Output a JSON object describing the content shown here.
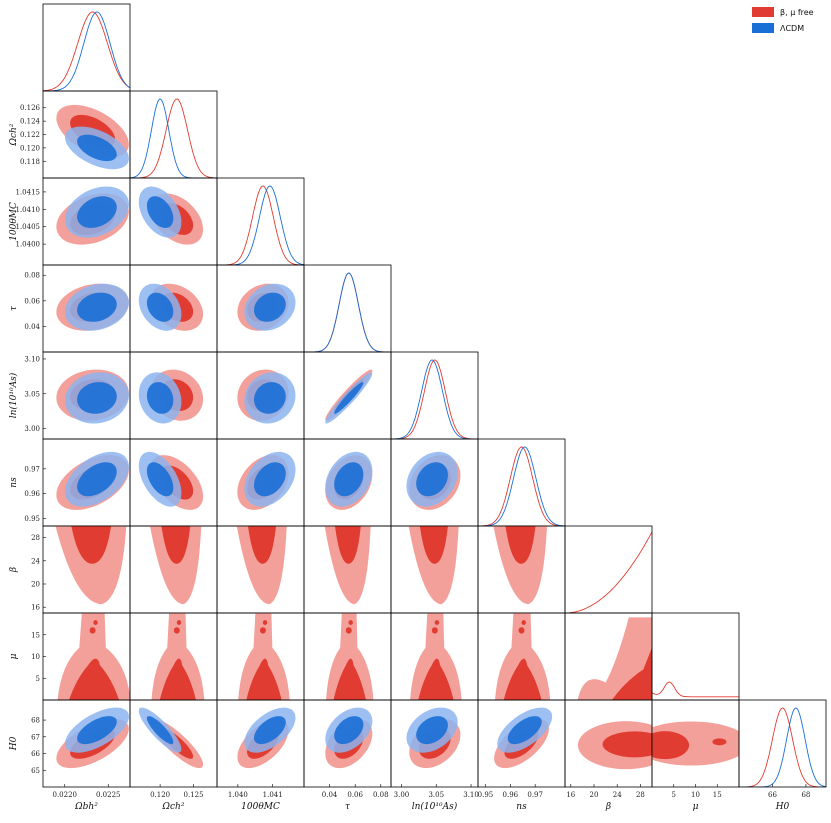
{
  "colors": {
    "red": "#E03C31",
    "red_light": "#F4A09A",
    "blue": "#1A6FD6",
    "blue_light": "#8CB4EE"
  },
  "legend": {
    "entries": [
      {
        "label": "β, μ free",
        "color": "#E03C31"
      },
      {
        "label": "ΛCDM",
        "color": "#1A6FD6"
      }
    ]
  },
  "chart_data": {
    "type": "triangle-corner",
    "series": [
      {
        "name": "β, μ free",
        "color": "#E03C31"
      },
      {
        "name": "ΛCDM",
        "color": "#1A6FD6"
      }
    ],
    "parameters": [
      {
        "key": "omegabh2",
        "label": "Ωbh²",
        "range": [
          0.02175,
          0.02275
        ],
        "ticks": [
          0.022,
          0.0225
        ],
        "tick_labels": [
          "0.0220",
          "0.0225"
        ],
        "red": {
          "mean": 0.02232,
          "sigma": 0.00017
        },
        "blue": {
          "mean": 0.02237,
          "sigma": 0.00015
        }
      },
      {
        "key": "omegach2",
        "label": "Ωch²",
        "range": [
          0.1155,
          0.1285
        ],
        "ticks": [
          0.118,
          0.12,
          0.122,
          0.124,
          0.126
        ],
        "tick_labels": [
          "0.118",
          "0.120",
          "0.122",
          "0.124",
          "0.126"
        ],
        "xticks": [
          0.12,
          0.125
        ],
        "xtick_labels": [
          "0.120",
          "0.125"
        ],
        "red": {
          "mean": 0.1225,
          "sigma": 0.0016
        },
        "blue": {
          "mean": 0.12,
          "sigma": 0.0013
        }
      },
      {
        "key": "theta",
        "label": "100θMC",
        "range": [
          1.0394,
          1.0419
        ],
        "ticks": [
          1.04,
          1.0405,
          1.041,
          1.0415
        ],
        "tick_labels": [
          "1.0400",
          "1.0405",
          "1.0410",
          "1.0415"
        ],
        "xticks": [
          1.04,
          1.041
        ],
        "xtick_labels": [
          "1.040",
          "1.041"
        ],
        "red": {
          "mean": 1.04072,
          "sigma": 0.0003
        },
        "blue": {
          "mean": 1.04092,
          "sigma": 0.0003
        }
      },
      {
        "key": "tau",
        "label": "τ",
        "range": [
          0.02,
          0.088
        ],
        "ticks": [
          0.04,
          0.06,
          0.08
        ],
        "tick_labels": [
          "0.04",
          "0.06",
          "0.08"
        ],
        "red": {
          "mean": 0.055,
          "sigma": 0.0075
        },
        "blue": {
          "mean": 0.055,
          "sigma": 0.0075
        }
      },
      {
        "key": "lnAs",
        "label": "ln(10¹⁰As)",
        "range": [
          2.985,
          3.11
        ],
        "ticks": [
          3.0,
          3.05,
          3.1
        ],
        "tick_labels": [
          "3.00",
          "3.05",
          "3.10"
        ],
        "red": {
          "mean": 3.048,
          "sigma": 0.015
        },
        "blue": {
          "mean": 3.044,
          "sigma": 0.015
        }
      },
      {
        "key": "ns",
        "label": "ns",
        "range": [
          0.947,
          0.982
        ],
        "ticks": [
          0.95,
          0.96,
          0.97
        ],
        "tick_labels": [
          "0.95",
          "0.96",
          "0.97"
        ],
        "xticks": [
          0.95,
          0.96,
          0.97
        ],
        "xtick_labels": [
          "0.95",
          "0.96",
          "0.97"
        ],
        "red": {
          "mean": 0.9645,
          "sigma": 0.0045
        },
        "blue": {
          "mean": 0.9658,
          "sigma": 0.0045
        }
      },
      {
        "key": "beta",
        "label": "β",
        "range": [
          15,
          30
        ],
        "ticks": [
          16,
          20,
          24,
          28
        ],
        "tick_labels": [
          "16",
          "20",
          "24",
          "28"
        ]
      },
      {
        "key": "mu",
        "label": "μ",
        "range": [
          0,
          20
        ],
        "ticks": [
          5,
          10,
          15
        ],
        "tick_labels": [
          "5",
          "10",
          "15"
        ]
      },
      {
        "key": "H0",
        "label": "H0",
        "range": [
          64,
          69.2
        ],
        "ticks": [
          65,
          66,
          67,
          68
        ],
        "tick_labels": [
          "65",
          "66",
          "67",
          "68"
        ],
        "xticks": [
          66,
          68
        ],
        "xtick_labels": [
          "66",
          "68"
        ],
        "red": {
          "mean": 66.6,
          "sigma": 0.6
        },
        "blue": {
          "mean": 67.4,
          "sigma": 0.55
        }
      }
    ],
    "correlations": {
      "red": {
        "omegabh2-omegach2": -0.5,
        "omegabh2-theta": 0.3,
        "omegabh2-tau": 0.2,
        "omegabh2-lnAs": 0.1,
        "omegabh2-ns": 0.45,
        "omegabh2-H0": 0.6,
        "omegach2-theta": -0.4,
        "omegach2-tau": -0.3,
        "omegach2-lnAs": -0.15,
        "omegach2-ns": -0.5,
        "omegach2-H0": -0.85,
        "theta-tau": 0.2,
        "theta-lnAs": 0.1,
        "theta-ns": 0.35,
        "theta-H0": 0.55,
        "tau-lnAs": 0.95,
        "tau-ns": 0.3,
        "tau-H0": 0.4,
        "lnAs-ns": 0.25,
        "lnAs-H0": 0.35,
        "ns-H0": 0.6
      },
      "blue": {
        "omegabh2-omegach2": -0.5,
        "omegabh2-theta": 0.3,
        "omegabh2-tau": 0.2,
        "omegabh2-lnAs": 0.1,
        "omegabh2-ns": 0.45,
        "omegabh2-H0": 0.6,
        "omegach2-theta": -0.4,
        "omegach2-tau": -0.3,
        "omegach2-lnAs": -0.15,
        "omegach2-ns": -0.5,
        "omegach2-H0": -0.85,
        "theta-tau": 0.2,
        "theta-lnAs": 0.1,
        "theta-ns": 0.35,
        "theta-H0": 0.55,
        "tau-lnAs": 0.95,
        "tau-ns": 0.3,
        "tau-H0": 0.4,
        "lnAs-ns": 0.25,
        "lnAs-H0": 0.35,
        "ns-H0": 0.6
      }
    },
    "beta_posterior": {
      "lower_bound_68": 24,
      "lower_bound_95": 17
    },
    "mu_posterior_peak": 4,
    "grid": false,
    "legend_position": "top-right"
  }
}
